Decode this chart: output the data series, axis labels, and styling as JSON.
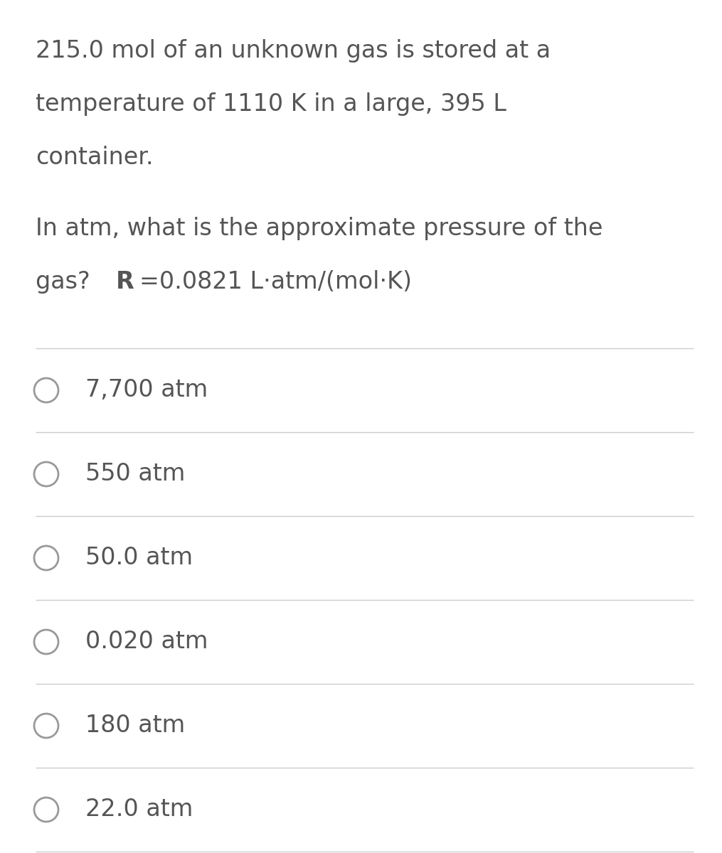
{
  "background_color": "#ffffff",
  "text_color": "#555555",
  "question_line1": "215.0 mol of an unknown gas is stored at a",
  "question_line2": "temperature of 1110 K in a large, 395 L",
  "question_line3": "container.",
  "question_line4": "In atm, what is the approximate pressure of the",
  "question_line5_prefix": "gas? ",
  "question_line5_bold": "R",
  "question_line5_suffix": "=0.0821 L·atm/(mol·K)",
  "options": [
    "7,700 atm",
    "550 atm",
    "50.0 atm",
    "0.020 atm",
    "180 atm",
    "22.0 atm"
  ],
  "divider_color": "#cccccc",
  "circle_color": "#999999",
  "text_fontsize": 24,
  "option_fontsize": 24,
  "fig_width": 10.15,
  "fig_height": 12.0,
  "dpi": 100
}
